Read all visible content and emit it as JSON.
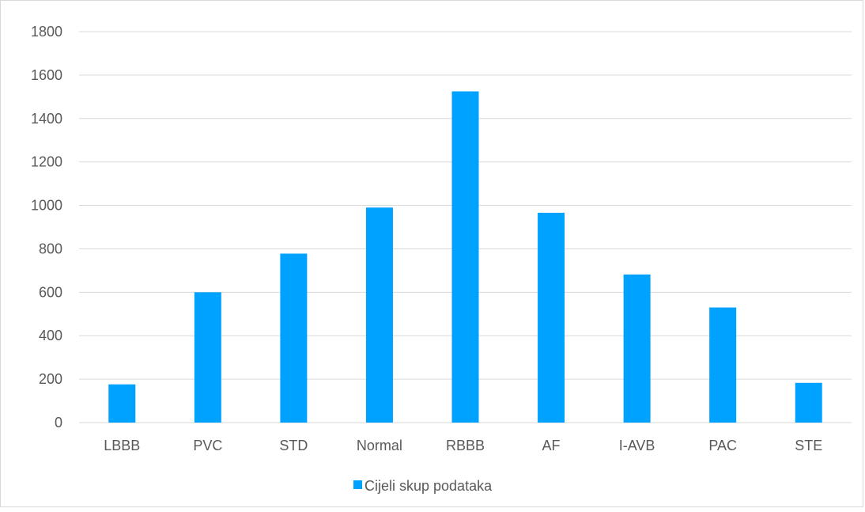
{
  "chart_data": {
    "type": "bar",
    "categories": [
      "LBBB",
      "PVC",
      "STD",
      "Normal",
      "RBBB",
      "AF",
      "I-AVB",
      "PAC",
      "STE"
    ],
    "series": [
      {
        "name": "Cijeli skup podataka",
        "values": [
          176,
          600,
          778,
          990,
          1525,
          966,
          682,
          530,
          183
        ],
        "color": "#00a2ff"
      }
    ],
    "title": "",
    "xlabel": "",
    "ylabel": "",
    "ylim": [
      0,
      1800
    ],
    "yticks": [
      "0",
      "200",
      "400",
      "600",
      "800",
      "1000",
      "1200",
      "1400",
      "1600",
      "1800"
    ],
    "grid": true,
    "gridColor": "#d9d9d9",
    "legend": "bottom"
  }
}
